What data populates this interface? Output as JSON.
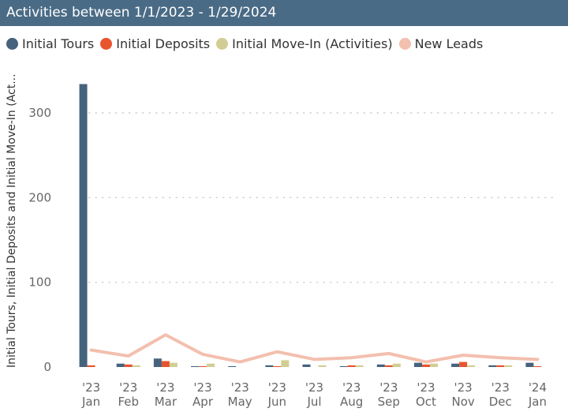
{
  "header": {
    "title": "Activities between 1/1/2023 - 1/29/2024"
  },
  "legend": {
    "items": [
      {
        "label": "Initial Tours",
        "color": "#45637d"
      },
      {
        "label": "Initial Deposits",
        "color": "#e8542e"
      },
      {
        "label": "Initial Move-In (Activities)",
        "color": "#d2cd93"
      },
      {
        "label": "New Leads",
        "color": "#f3bfae"
      }
    ]
  },
  "chart_data": {
    "type": "bar",
    "title": "",
    "ylabel": "Initial Tours, Initial Deposits and Initial Move-In (Act...",
    "xlabel": "",
    "ylim": [
      0,
      345
    ],
    "yticks": [
      0,
      100,
      200,
      300
    ],
    "grid": true,
    "legend_position": "top-left",
    "categories": [
      {
        "year": "'23",
        "month": "Jan"
      },
      {
        "year": "'23",
        "month": "Feb"
      },
      {
        "year": "'23",
        "month": "Mar"
      },
      {
        "year": "'23",
        "month": "Apr"
      },
      {
        "year": "'23",
        "month": "May"
      },
      {
        "year": "'23",
        "month": "Jun"
      },
      {
        "year": "'23",
        "month": "Jul"
      },
      {
        "year": "'23",
        "month": "Aug"
      },
      {
        "year": "'23",
        "month": "Sep"
      },
      {
        "year": "'23",
        "month": "Oct"
      },
      {
        "year": "'23",
        "month": "Nov"
      },
      {
        "year": "'23",
        "month": "Dec"
      },
      {
        "year": "'24",
        "month": "Jan"
      }
    ],
    "series": [
      {
        "name": "Initial Tours",
        "type": "bar",
        "color": "#45637d",
        "values": [
          334,
          4,
          10,
          1,
          1,
          2,
          3,
          1,
          3,
          5,
          4,
          2,
          5
        ]
      },
      {
        "name": "Initial Deposits",
        "type": "bar",
        "color": "#e8542e",
        "values": [
          2,
          3,
          7,
          1,
          0,
          1,
          0,
          2,
          2,
          3,
          6,
          2,
          1
        ]
      },
      {
        "name": "Initial Move-In (Activities)",
        "type": "bar",
        "color": "#d2cd93",
        "values": [
          0,
          2,
          5,
          4,
          0,
          8,
          2,
          2,
          4,
          4,
          2,
          2,
          0
        ]
      },
      {
        "name": "New Leads",
        "type": "line",
        "color": "#f3bfae",
        "values": [
          20,
          13,
          38,
          15,
          6,
          18,
          9,
          11,
          16,
          6,
          14,
          11,
          9
        ]
      }
    ]
  }
}
